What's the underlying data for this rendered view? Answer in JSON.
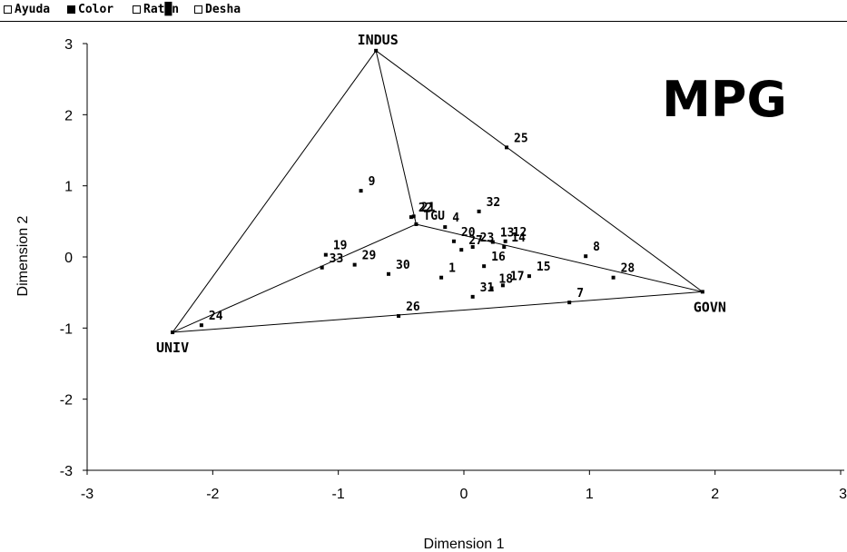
{
  "menu": [
    {
      "label": "Ayuda",
      "checked": false
    },
    {
      "label": "Color",
      "checked": true
    },
    {
      "label": "Rat█n",
      "checked": false
    },
    {
      "label": "Desha",
      "checked": false
    }
  ],
  "chart_data": {
    "type": "scatter",
    "title": "MPG",
    "xlabel": "Dimension 1",
    "ylabel": "Dimension 2",
    "xlim": [
      -3,
      3
    ],
    "ylim": [
      -3,
      3
    ],
    "x_ticks": [
      -3,
      -2,
      -1,
      0,
      1,
      2,
      3
    ],
    "y_ticks": [
      -3,
      -2,
      -1,
      0,
      1,
      2,
      3
    ],
    "grid": false,
    "vertices": [
      {
        "label": "INDUS",
        "x": -0.7,
        "y": 2.9
      },
      {
        "label": "UNIV",
        "x": -2.32,
        "y": -1.06
      },
      {
        "label": "GOVN",
        "x": 1.9,
        "y": -0.49
      },
      {
        "label": "TGU",
        "x": -0.38,
        "y": 0.46
      }
    ],
    "points": [
      {
        "label": "1",
        "x": -0.18,
        "y": -0.29
      },
      {
        "label": "4",
        "x": -0.15,
        "y": 0.42
      },
      {
        "label": "7",
        "x": 0.84,
        "y": -0.64
      },
      {
        "label": "8",
        "x": 0.97,
        "y": 0.01
      },
      {
        "label": "9",
        "x": -0.82,
        "y": 0.93
      },
      {
        "label": "12",
        "x": 0.33,
        "y": 0.22
      },
      {
        "label": "13",
        "x": 0.23,
        "y": 0.21
      },
      {
        "label": "14",
        "x": 0.32,
        "y": 0.14
      },
      {
        "label": "15",
        "x": 0.52,
        "y": -0.27
      },
      {
        "label": "16",
        "x": 0.16,
        "y": -0.13
      },
      {
        "label": "17",
        "x": 0.31,
        "y": -0.4
      },
      {
        "label": "18",
        "x": 0.22,
        "y": -0.44
      },
      {
        "label": "19",
        "x": -1.1,
        "y": 0.03
      },
      {
        "label": "20",
        "x": -0.08,
        "y": 0.22
      },
      {
        "label": "21",
        "x": -0.4,
        "y": 0.57
      },
      {
        "label": "22",
        "x": -0.42,
        "y": 0.56
      },
      {
        "label": "23",
        "x": 0.07,
        "y": 0.14
      },
      {
        "label": "24",
        "x": -2.09,
        "y": -0.96
      },
      {
        "label": "25",
        "x": 0.34,
        "y": 1.54
      },
      {
        "label": "26",
        "x": -0.52,
        "y": -0.83
      },
      {
        "label": "27",
        "x": -0.02,
        "y": 0.1
      },
      {
        "label": "28",
        "x": 1.19,
        "y": -0.29
      },
      {
        "label": "29",
        "x": -0.87,
        "y": -0.11
      },
      {
        "label": "30",
        "x": -0.6,
        "y": -0.24
      },
      {
        "label": "31",
        "x": 0.07,
        "y": -0.56
      },
      {
        "label": "32",
        "x": 0.12,
        "y": 0.64
      },
      {
        "label": "33",
        "x": -1.13,
        "y": -0.15
      }
    ],
    "edges": [
      [
        "INDUS",
        "UNIV"
      ],
      [
        "INDUS",
        "GOVN"
      ],
      [
        "UNIV",
        "GOVN"
      ],
      [
        "INDUS",
        "TGU"
      ],
      [
        "UNIV",
        "TGU"
      ],
      [
        "GOVN",
        "TGU"
      ]
    ]
  }
}
